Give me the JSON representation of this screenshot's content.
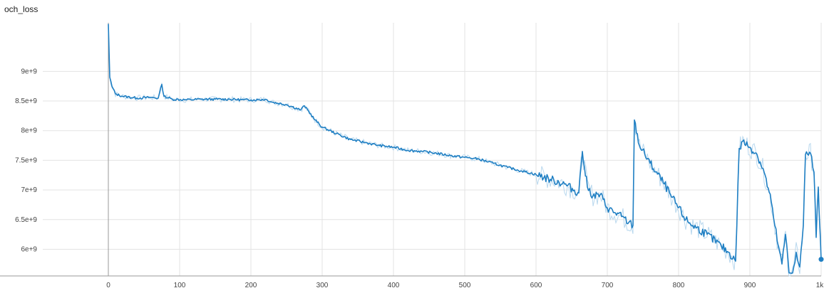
{
  "chart_data": {
    "type": "line",
    "title": "och_loss",
    "xlabel": "",
    "ylabel": "",
    "xlim": [
      -152,
      1000
    ],
    "ylim": [
      5550000000.0,
      9820000000.0
    ],
    "x_ticks": [
      {
        "value": 0,
        "label": "0"
      },
      {
        "value": 100,
        "label": "100"
      },
      {
        "value": 200,
        "label": "200"
      },
      {
        "value": 300,
        "label": "300"
      },
      {
        "value": 400,
        "label": "400"
      },
      {
        "value": 500,
        "label": "500"
      },
      {
        "value": 600,
        "label": "600"
      },
      {
        "value": 700,
        "label": "700"
      },
      {
        "value": 800,
        "label": "800"
      },
      {
        "value": 900,
        "label": "900"
      },
      {
        "value": 1000,
        "label": "1k"
      }
    ],
    "y_ticks": [
      {
        "value": 9000000000.0,
        "label": "9e+9"
      },
      {
        "value": 8500000000.0,
        "label": "8.5e+9"
      },
      {
        "value": 8000000000.0,
        "label": "8e+9"
      },
      {
        "value": 7500000000.0,
        "label": "7.5e+9"
      },
      {
        "value": 7000000000.0,
        "label": "7e+9"
      },
      {
        "value": 6500000000.0,
        "label": "6.5e+9"
      },
      {
        "value": 6000000000.0,
        "label": "6e+9"
      }
    ],
    "grid": true,
    "series": [
      {
        "color": "#1f7fc3",
        "raw_color": "#b9d8ee",
        "x": [
          0,
          2,
          5,
          10,
          20,
          40,
          60,
          70,
          75,
          78,
          90,
          110,
          130,
          150,
          170,
          190,
          200,
          210,
          220,
          230,
          250,
          270,
          275,
          290,
          300,
          320,
          340,
          360,
          380,
          400,
          420,
          440,
          460,
          480,
          500,
          520,
          540,
          560,
          580,
          600,
          620,
          640,
          660,
          665,
          668,
          672,
          680,
          690,
          700,
          710,
          720,
          730,
          736,
          738,
          745,
          760,
          780,
          790,
          800,
          810,
          820,
          840,
          860,
          870,
          880,
          885,
          890,
          900,
          910,
          920,
          930,
          935,
          940,
          945,
          950,
          955,
          960,
          965,
          970,
          975,
          978,
          985,
          990,
          993,
          996,
          1000
        ],
        "values": [
          9800000000.0,
          8900000000.0,
          8750000000.0,
          8620000000.0,
          8580000000.0,
          8550000000.0,
          8560000000.0,
          8550000000.0,
          8780000000.0,
          8580000000.0,
          8530000000.0,
          8520000000.0,
          8530000000.0,
          8530000000.0,
          8530000000.0,
          8520000000.0,
          8520000000.0,
          8520000000.0,
          8530000000.0,
          8480000000.0,
          8440000000.0,
          8350000000.0,
          8420000000.0,
          8180000000.0,
          8060000000.0,
          7950000000.0,
          7850000000.0,
          7800000000.0,
          7750000000.0,
          7720000000.0,
          7670000000.0,
          7650000000.0,
          7620000000.0,
          7580000000.0,
          7550000000.0,
          7520000000.0,
          7450000000.0,
          7380000000.0,
          7320000000.0,
          7260000000.0,
          7180000000.0,
          7100000000.0,
          6950000000.0,
          7650000000.0,
          7380000000.0,
          7050000000.0,
          6900000000.0,
          6920000000.0,
          6700000000.0,
          6620000000.0,
          6550000000.0,
          6450000000.0,
          6400000000.0,
          8180000000.0,
          7750000000.0,
          7450000000.0,
          7100000000.0,
          6880000000.0,
          6700000000.0,
          6500000000.0,
          6400000000.0,
          6250000000.0,
          6050000000.0,
          5950000000.0,
          5800000000.0,
          7700000000.0,
          7820000000.0,
          7720000000.0,
          7600000000.0,
          7300000000.0,
          6800000000.0,
          6400000000.0,
          6050000000.0,
          5750000000.0,
          6250000000.0,
          5600000000.0,
          5600000000.0,
          5950000000.0,
          5700000000.0,
          6400000000.0,
          7600000000.0,
          7620000000.0,
          7300000000.0,
          6200000000.0,
          7050000000.0,
          5830000000.0
        ]
      }
    ]
  }
}
